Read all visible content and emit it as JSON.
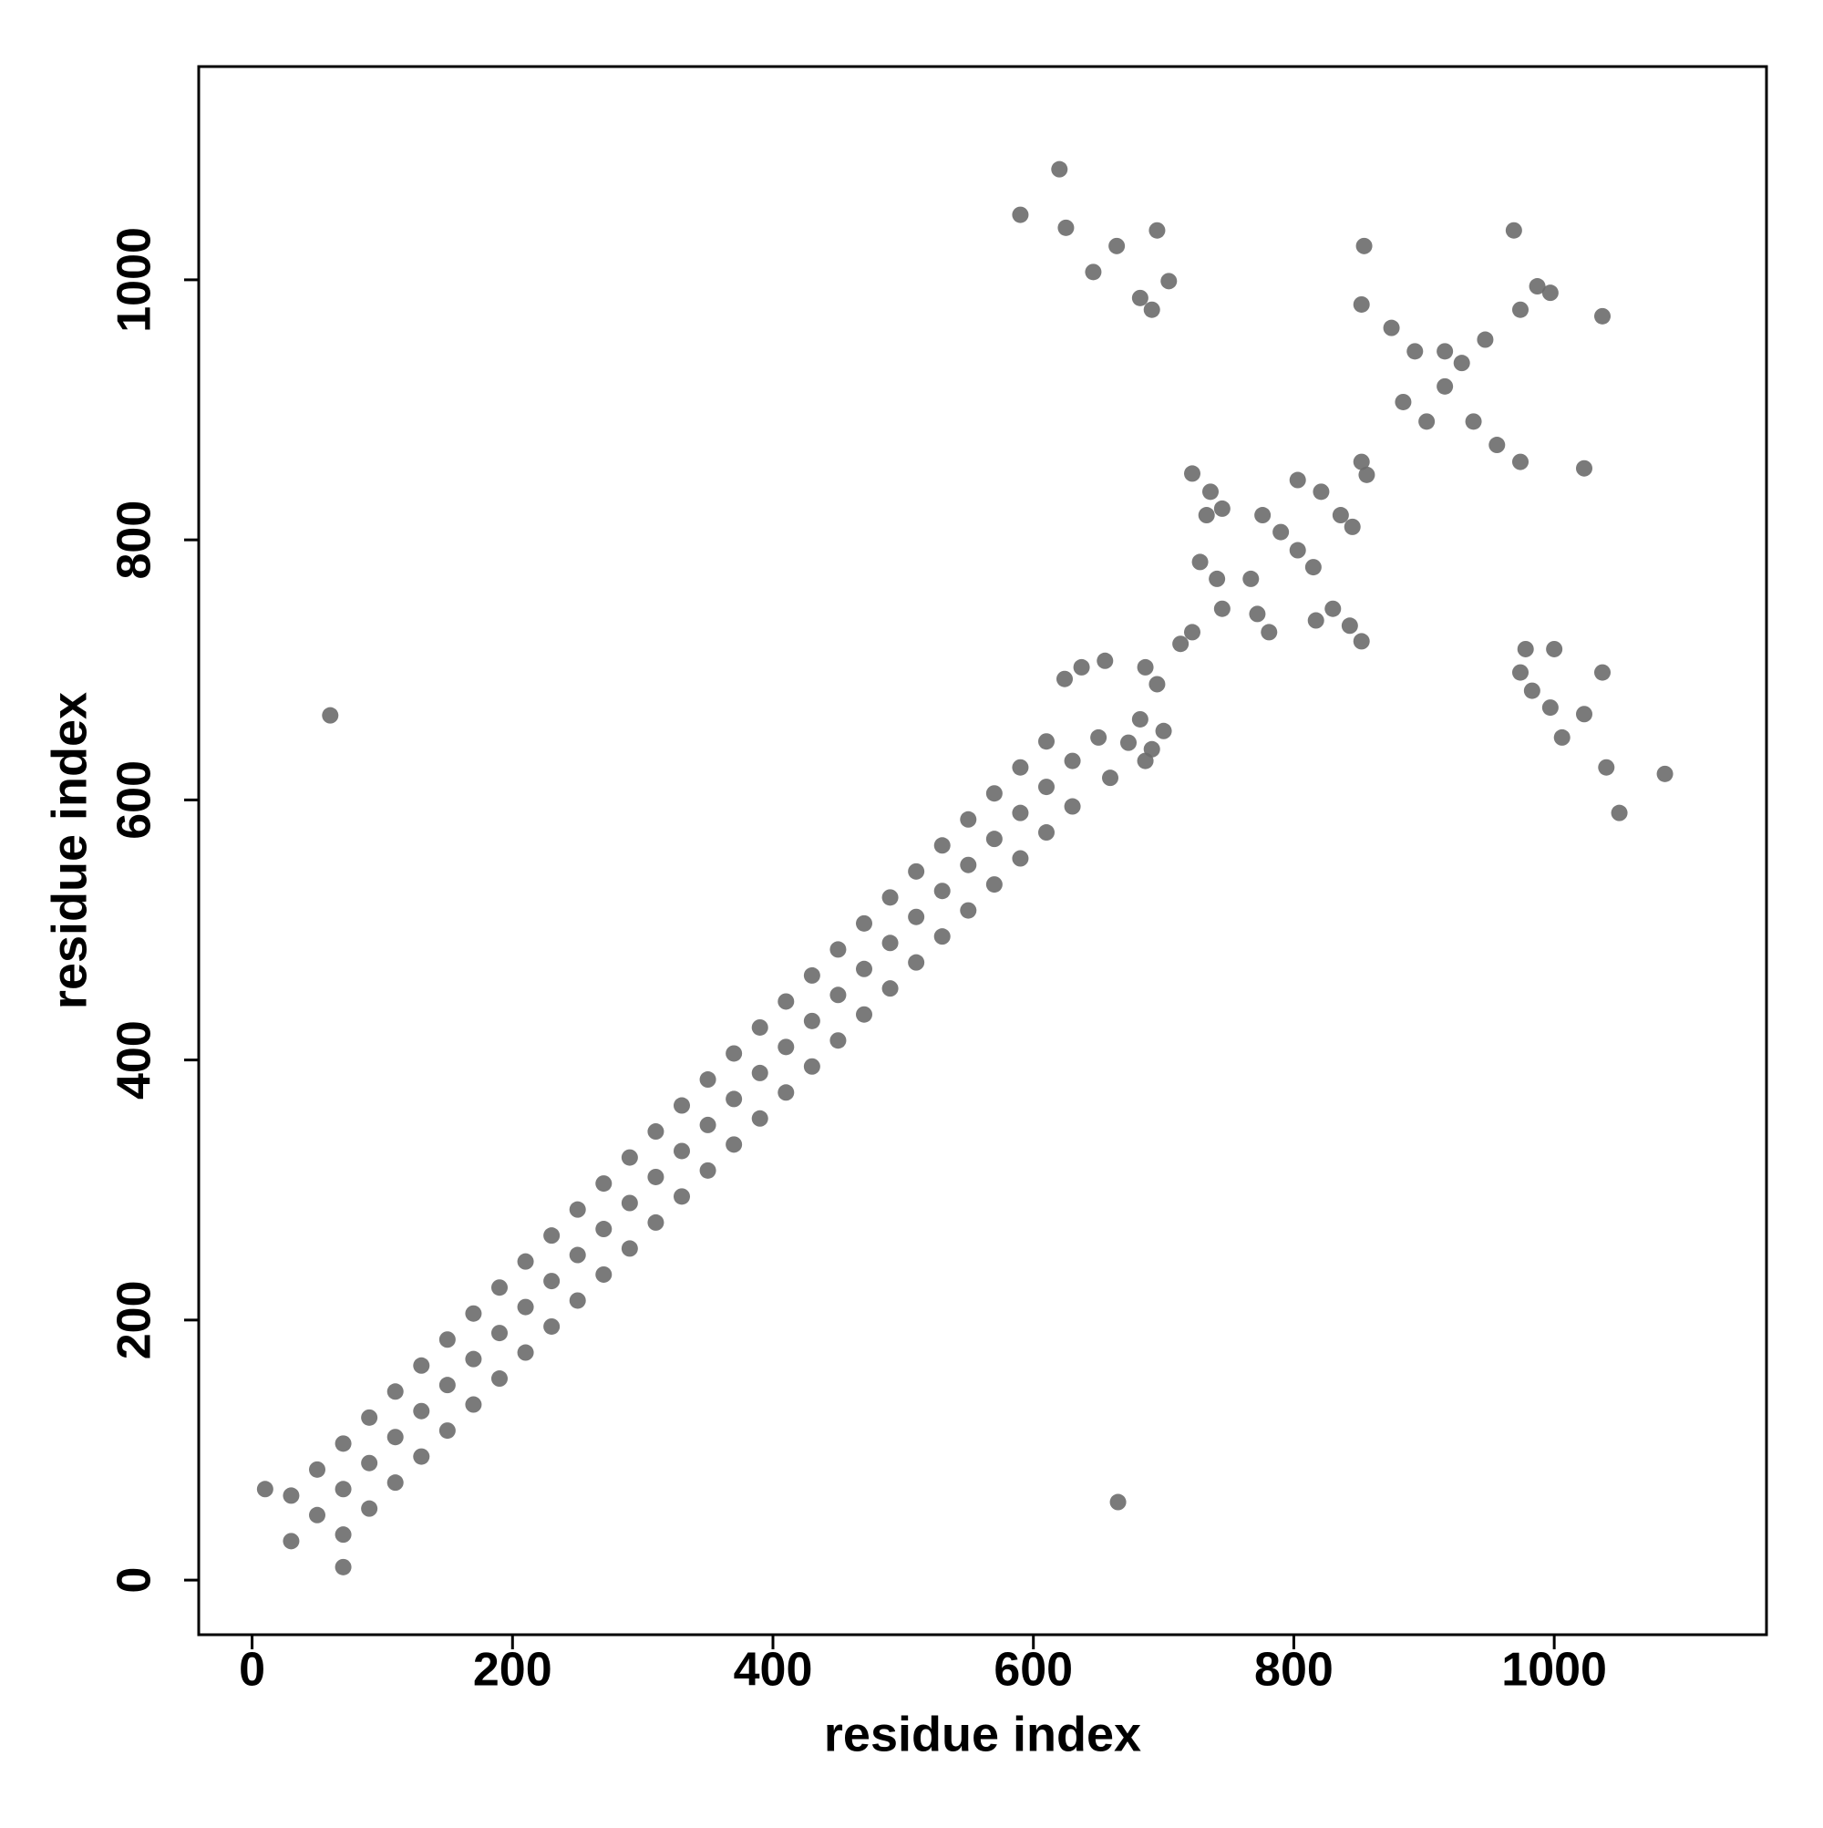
{
  "chart_data": {
    "type": "scatter",
    "x_label": "residue index",
    "y_label": "residue index",
    "xlim": [
      -41,
      1163
    ],
    "ylim": [
      -42,
      1164
    ],
    "xticks": [
      0,
      200,
      400,
      600,
      800,
      1000
    ],
    "yticks": [
      0,
      200,
      400,
      600,
      800,
      1000
    ],
    "color": "#6b6b6b",
    "x": [
      30,
      50,
      70,
      90,
      110,
      130,
      150,
      170,
      190,
      210,
      230,
      250,
      270,
      290,
      310,
      330,
      350,
      370,
      390,
      410,
      430,
      450,
      470,
      490,
      510,
      530,
      550,
      570,
      590,
      610,
      630,
      30,
      50,
      70,
      90,
      110,
      130,
      150,
      170,
      190,
      210,
      230,
      250,
      270,
      290,
      310,
      330,
      350,
      370,
      390,
      410,
      430,
      450,
      470,
      490,
      510,
      530,
      550,
      570,
      590,
      610,
      70,
      90,
      110,
      130,
      150,
      170,
      190,
      210,
      230,
      250,
      270,
      290,
      310,
      330,
      350,
      370,
      390,
      410,
      430,
      450,
      470,
      490,
      510,
      530,
      550,
      570,
      590,
      610,
      630,
      10,
      60,
      70,
      665,
      590,
      620,
      625,
      1085,
      1050,
      1040,
      646,
      682,
      691,
      704,
      695,
      664,
      854,
      852,
      875,
      893,
      916,
      938,
      956,
      974,
      969,
      974,
      987,
      997,
      1037,
      884,
      902,
      916,
      929,
      947,
      1023,
      852,
      856,
      722,
      736,
      745,
      733,
      728,
      741,
      745,
      767,
      776,
      790,
      803,
      815,
      772,
      781,
      803,
      821,
      836,
      845,
      817,
      830,
      843,
      852,
      978,
      974,
      983,
      997,
      1006,
      1000,
      1023,
      1037,
      624,
      637,
      655,
      686,
      695,
      682,
      700,
      691,
      673,
      650,
      659,
      686,
      713,
      722
    ],
    "y": [
      30,
      50,
      70,
      90,
      110,
      130,
      150,
      170,
      190,
      210,
      230,
      250,
      270,
      290,
      310,
      330,
      350,
      370,
      390,
      410,
      430,
      450,
      470,
      490,
      510,
      530,
      550,
      570,
      590,
      610,
      630,
      65,
      85,
      105,
      125,
      145,
      165,
      185,
      205,
      225,
      245,
      265,
      285,
      305,
      325,
      345,
      365,
      385,
      405,
      425,
      445,
      465,
      485,
      505,
      525,
      545,
      565,
      585,
      605,
      625,
      645,
      35,
      55,
      75,
      95,
      115,
      135,
      155,
      175,
      195,
      215,
      235,
      255,
      275,
      295,
      315,
      335,
      355,
      375,
      395,
      415,
      435,
      455,
      475,
      495,
      515,
      535,
      555,
      575,
      595,
      70,
      665,
      10,
      60,
      1050,
      1085,
      1040,
      620,
      590,
      625,
      1006,
      986,
      977,
      999,
      1038,
      1026,
      1026,
      981,
      963,
      945,
      918,
      891,
      873,
      860,
      1038,
      977,
      995,
      990,
      972,
      906,
      891,
      945,
      936,
      954,
      855,
      860,
      850,
      851,
      837,
      824,
      819,
      783,
      770,
      747,
      770,
      819,
      806,
      792,
      779,
      743,
      729,
      846,
      837,
      819,
      810,
      738,
      747,
      734,
      722,
      716,
      698,
      684,
      671,
      648,
      716,
      666,
      698,
      693,
      702,
      707,
      702,
      689,
      662,
      653,
      639,
      644,
      648,
      617,
      630,
      720,
      729
    ]
  }
}
